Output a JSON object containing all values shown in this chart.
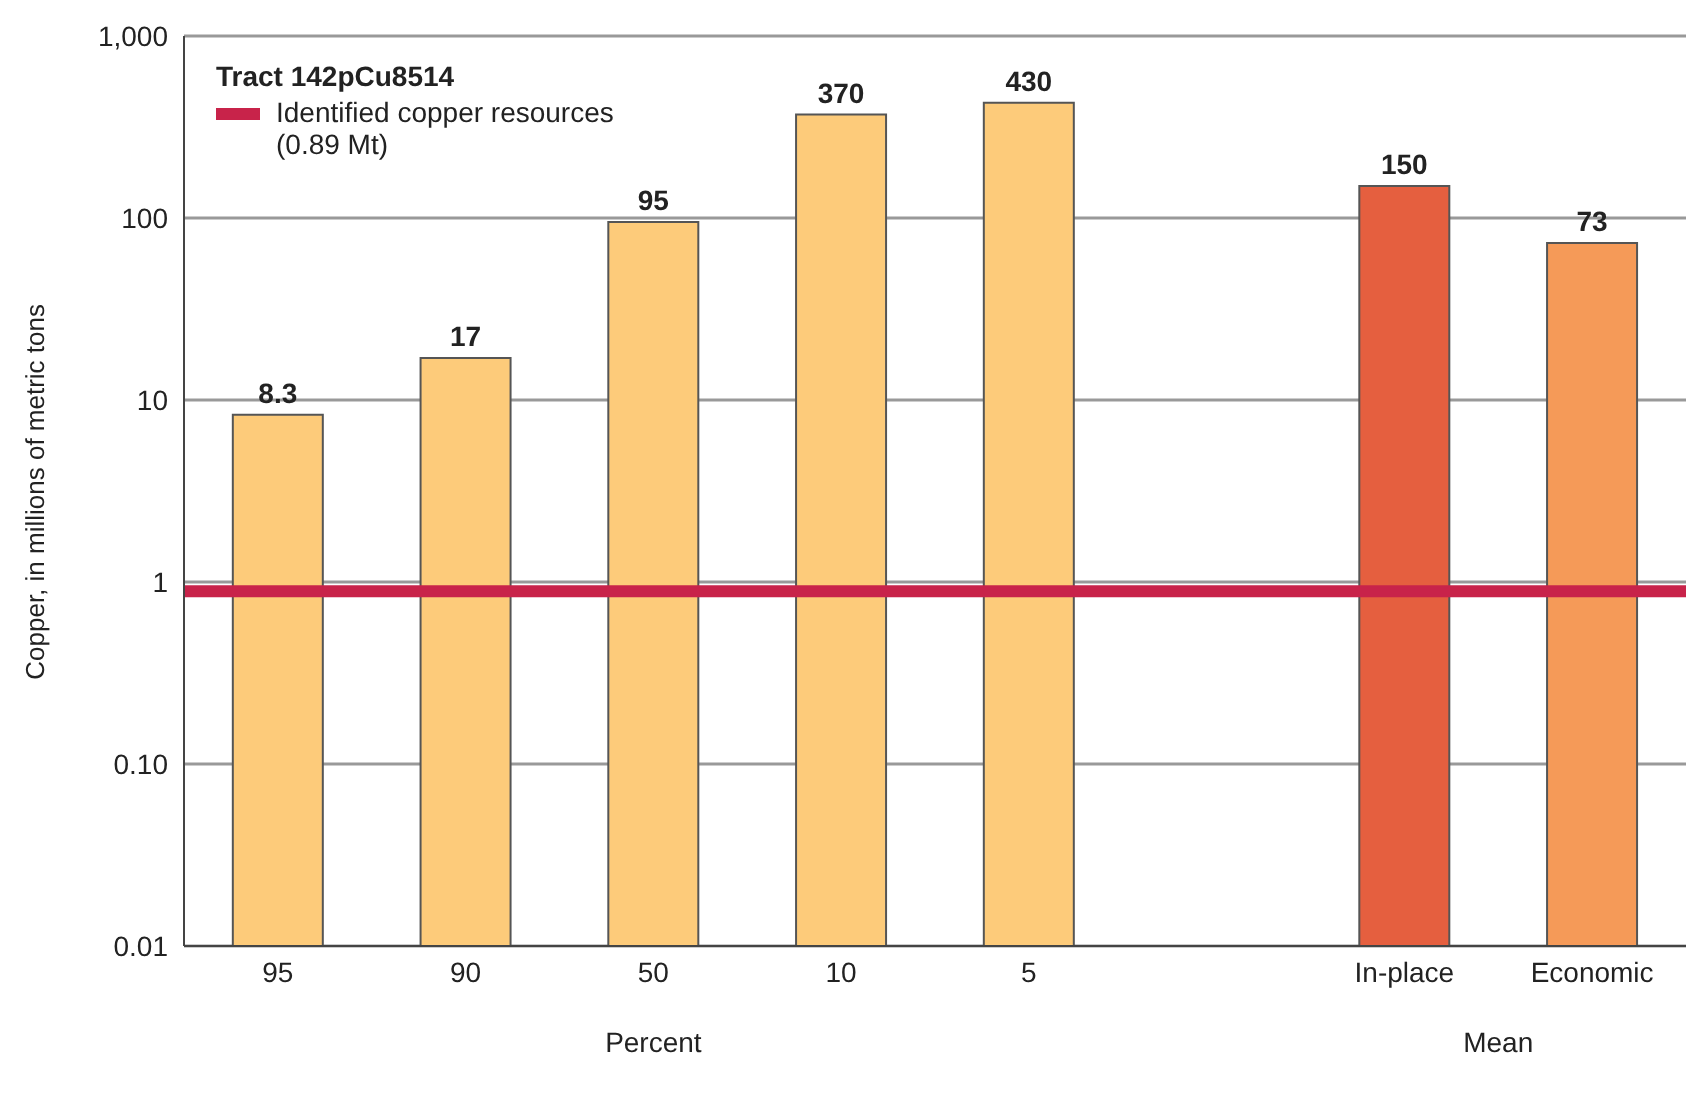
{
  "chart_data": {
    "type": "bar",
    "ylabel": "Copper, in millions of metric tons",
    "legend_title": "Tract 142pCu8514",
    "categories": [
      "95",
      "90",
      "50",
      "10",
      "5",
      null,
      "In-place",
      "Economic"
    ],
    "values": [
      8.3,
      17,
      95,
      370,
      430,
      null,
      150,
      73
    ],
    "colors": [
      "#fdcb7a",
      "#fdcb7a",
      "#fdcb7a",
      "#fdcb7a",
      "#fdcb7a",
      "#fdcb7a",
      "#e55f3f",
      "#f59a58"
    ],
    "log": true,
    "ylim": [
      0.01,
      1000
    ],
    "yticks": [
      0.01,
      {
        "value": 0.1,
        "label": "0.10"
      },
      1,
      10,
      100,
      {
        "value": 1000,
        "label": "1,000"
      }
    ],
    "grid": "y",
    "data_labels": true,
    "legend": "top left",
    "ref_lines": [
      {
        "axis": "y",
        "value": 0.89,
        "label": "Identified copper resources (0.89 Mt)",
        "color": "#c8234a"
      }
    ],
    "annotations": [
      "Percent",
      "Mean"
    ]
  }
}
